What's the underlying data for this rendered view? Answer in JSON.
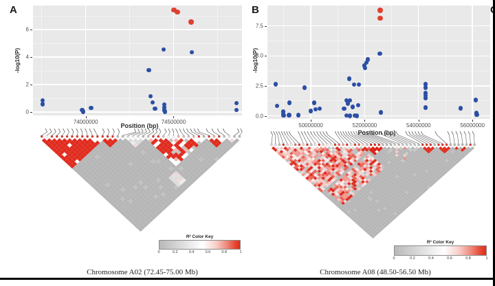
{
  "figure": {
    "panel_a_label": "A",
    "panel_b_label": "B",
    "panel_c_label": "C",
    "captions": {
      "a": "Chromosome A02 (72.45-75.00 Mb)",
      "b": "Chromosome A08 (48.50-56.50 Mb)"
    },
    "color_key": {
      "title": "R² Color Key",
      "ticks": [
        "0",
        "0.2",
        "0.4",
        "0.6",
        "0.8",
        "1"
      ]
    },
    "colors": {
      "point_blue": "#2b4fa5",
      "point_red": "#de4030",
      "ld_red": "#e02c1f",
      "ld_gray": "#b6b6b6",
      "plot_bg": "#e9e9e9"
    }
  },
  "chart_data": [
    {
      "type": "scatter",
      "panel": "a",
      "title": "",
      "xlabel": "Position (bp)",
      "ylabel": "-log10(P)",
      "xlim": [
        73700000,
        74890000
      ],
      "ylim": [
        -0.25,
        7.75
      ],
      "grid": "on",
      "legend": "none",
      "x_ticks": [
        {
          "value": 74000000,
          "label": "74000000"
        },
        {
          "value": 74500000,
          "label": "74500000"
        }
      ],
      "x_minor": [
        73750000,
        74250000,
        74750000
      ],
      "y_ticks": [
        {
          "value": 0,
          "label": "0"
        },
        {
          "value": 2,
          "label": "2"
        },
        {
          "value": 4,
          "label": "4"
        },
        {
          "value": 6,
          "label": "6"
        }
      ],
      "y_minor": [
        1,
        3,
        5,
        7
      ],
      "series": [
        {
          "name": "snp",
          "color": "#2b4fa5",
          "size": 6.5,
          "points": [
            [
              73755000,
              0.85
            ],
            [
              73755000,
              0.58
            ],
            [
              73980000,
              0.15
            ],
            [
              73985000,
              0.03
            ],
            [
              74030000,
              0.3
            ],
            [
              74360000,
              3.05
            ],
            [
              74370000,
              1.15
            ],
            [
              74382000,
              0.7
            ],
            [
              74395000,
              0.25
            ],
            [
              74443000,
              4.55
            ],
            [
              74448000,
              0.55
            ],
            [
              74448000,
              0.32
            ],
            [
              74448000,
              0.12
            ],
            [
              74452000,
              0.02
            ],
            [
              74604000,
              4.35
            ],
            [
              74858000,
              0.65
            ],
            [
              74858000,
              0.15
            ]
          ]
        },
        {
          "name": "snp-significant",
          "color": "#de4030",
          "size": 7.5,
          "points": [
            [
              74502000,
              7.42
            ],
            [
              74522000,
              7.28
            ],
            [
              74600000,
              6.55
            ]
          ]
        }
      ]
    },
    {
      "type": "scatter",
      "panel": "b",
      "title": "",
      "xlabel": "Position (bp)",
      "ylabel": "-log10(P)",
      "xlim": [
        48390000,
        56660000
      ],
      "ylim": [
        -0.25,
        9.2
      ],
      "grid": "on",
      "legend": "none",
      "x_ticks": [
        {
          "value": 50000000,
          "label": "50000000"
        },
        {
          "value": 52000000,
          "label": "52000000"
        },
        {
          "value": 54000000,
          "label": "54000000"
        },
        {
          "value": 56000000,
          "label": "56000000"
        }
      ],
      "x_minor": [
        49000000,
        51000000,
        53000000,
        55000000
      ],
      "y_ticks": [
        {
          "value": 0,
          "label": "0.0"
        },
        {
          "value": 2.5,
          "label": "2.5"
        },
        {
          "value": 5,
          "label": "5.0"
        },
        {
          "value": 7.5,
          "label": "7.5"
        }
      ],
      "y_minor": [
        1.25,
        3.75,
        6.25
      ],
      "series": [
        {
          "name": "snp",
          "color": "#2b4fa5",
          "size": 6.5,
          "points": [
            [
              48700000,
              2.65
            ],
            [
              48750000,
              0.85
            ],
            [
              48980000,
              0.35
            ],
            [
              48980000,
              0.15
            ],
            [
              48985000,
              0.03
            ],
            [
              49210000,
              1.1
            ],
            [
              49190000,
              0.06
            ],
            [
              49540000,
              0.06
            ],
            [
              49770000,
              2.35
            ],
            [
              50000000,
              0.4
            ],
            [
              50130000,
              1.1
            ],
            [
              50180000,
              0.55
            ],
            [
              50330000,
              0.6
            ],
            [
              51230000,
              0.6
            ],
            [
              51330000,
              1.3
            ],
            [
              51330000,
              0.05
            ],
            [
              51380000,
              1.05
            ],
            [
              51430000,
              3.1
            ],
            [
              51450000,
              1.3
            ],
            [
              51450000,
              0.02
            ],
            [
              51560000,
              0.75
            ],
            [
              51600000,
              2.6
            ],
            [
              51630000,
              0.05
            ],
            [
              51710000,
              0.02
            ],
            [
              51760000,
              0.9
            ],
            [
              51790000,
              2.6
            ],
            [
              51990000,
              4.2
            ],
            [
              52020000,
              4.0
            ],
            [
              52070000,
              4.45
            ],
            [
              52120000,
              4.7
            ],
            [
              52560000,
              5.2
            ],
            [
              52600000,
              0.3
            ],
            [
              54260000,
              2.63
            ],
            [
              54260000,
              2.35
            ],
            [
              54260000,
              1.89
            ],
            [
              54260000,
              1.7
            ],
            [
              54260000,
              1.5
            ],
            [
              54260000,
              0.7
            ],
            [
              55560000,
              0.63
            ],
            [
              56130000,
              1.32
            ],
            [
              56150000,
              0.25
            ],
            [
              56160000,
              0.1
            ]
          ]
        },
        {
          "name": "snp-significant",
          "color": "#de4030",
          "size": 7.5,
          "points": [
            [
              52580000,
              8.8
            ],
            [
              52580000,
              8.15
            ]
          ]
        }
      ]
    }
  ],
  "ld_plots": [
    {
      "panel": "a",
      "n_markers": 40,
      "seed": 11,
      "marker_clusters": [
        [
          0.02,
          0.28,
          12
        ],
        [
          0.3,
          0.4,
          4
        ],
        [
          0.46,
          0.6,
          8
        ],
        [
          0.61,
          0.79,
          10
        ],
        [
          0.81,
          0.92,
          4
        ],
        [
          0.97,
          1.0,
          2
        ]
      ],
      "blocks": [
        {
          "a0": 0,
          "a1": 12,
          "b0": 0,
          "b1": 12,
          "type": "solid"
        },
        {
          "a0": 12,
          "a1": 15,
          "b0": 12,
          "b1": 15,
          "type": "solid"
        },
        {
          "a0": 17,
          "a1": 20,
          "b0": 17,
          "b1": 20,
          "type": "light"
        },
        {
          "a0": 21,
          "a1": 32,
          "b0": 21,
          "b1": 32,
          "type": "mottled-strong"
        },
        {
          "a0": 33,
          "a1": 36,
          "b0": 33,
          "b1": 36,
          "type": "mottled-strong"
        },
        {
          "a0": 37,
          "a1": 38,
          "b0": 37,
          "b1": 38,
          "type": "light"
        },
        {
          "a0": 17,
          "a1": 19,
          "b0": 34,
          "b1": 37,
          "type": "light"
        }
      ]
    },
    {
      "panel": "b",
      "n_markers": 52,
      "seed": 23,
      "marker_clusters": [
        [
          0.0,
          0.1,
          8
        ],
        [
          0.13,
          0.28,
          10
        ],
        [
          0.31,
          0.5,
          15
        ],
        [
          0.53,
          0.62,
          5
        ],
        [
          0.65,
          0.74,
          6
        ],
        [
          0.79,
          0.81,
          1
        ],
        [
          0.85,
          0.99,
          7
        ]
      ],
      "blocks": [
        {
          "a0": 0,
          "a1": 25,
          "b0": 0,
          "b1": 25,
          "type": "mottled"
        },
        {
          "a0": 2,
          "a1": 22,
          "b0": 27,
          "b1": 34,
          "type": "mottled"
        },
        {
          "a0": 24,
          "a1": 28,
          "b0": 24,
          "b1": 28,
          "type": "solid-dark"
        },
        {
          "a0": 29,
          "a1": 37,
          "b0": 29,
          "b1": 37,
          "type": "light-sparse"
        },
        {
          "a0": 38,
          "a1": 41,
          "b0": 38,
          "b1": 41,
          "type": "solid"
        },
        {
          "a0": 42,
          "a1": 45,
          "b0": 42,
          "b1": 45,
          "type": "solid"
        },
        {
          "a0": 46,
          "a1": 51,
          "b0": 46,
          "b1": 51,
          "type": "dots"
        }
      ]
    }
  ]
}
